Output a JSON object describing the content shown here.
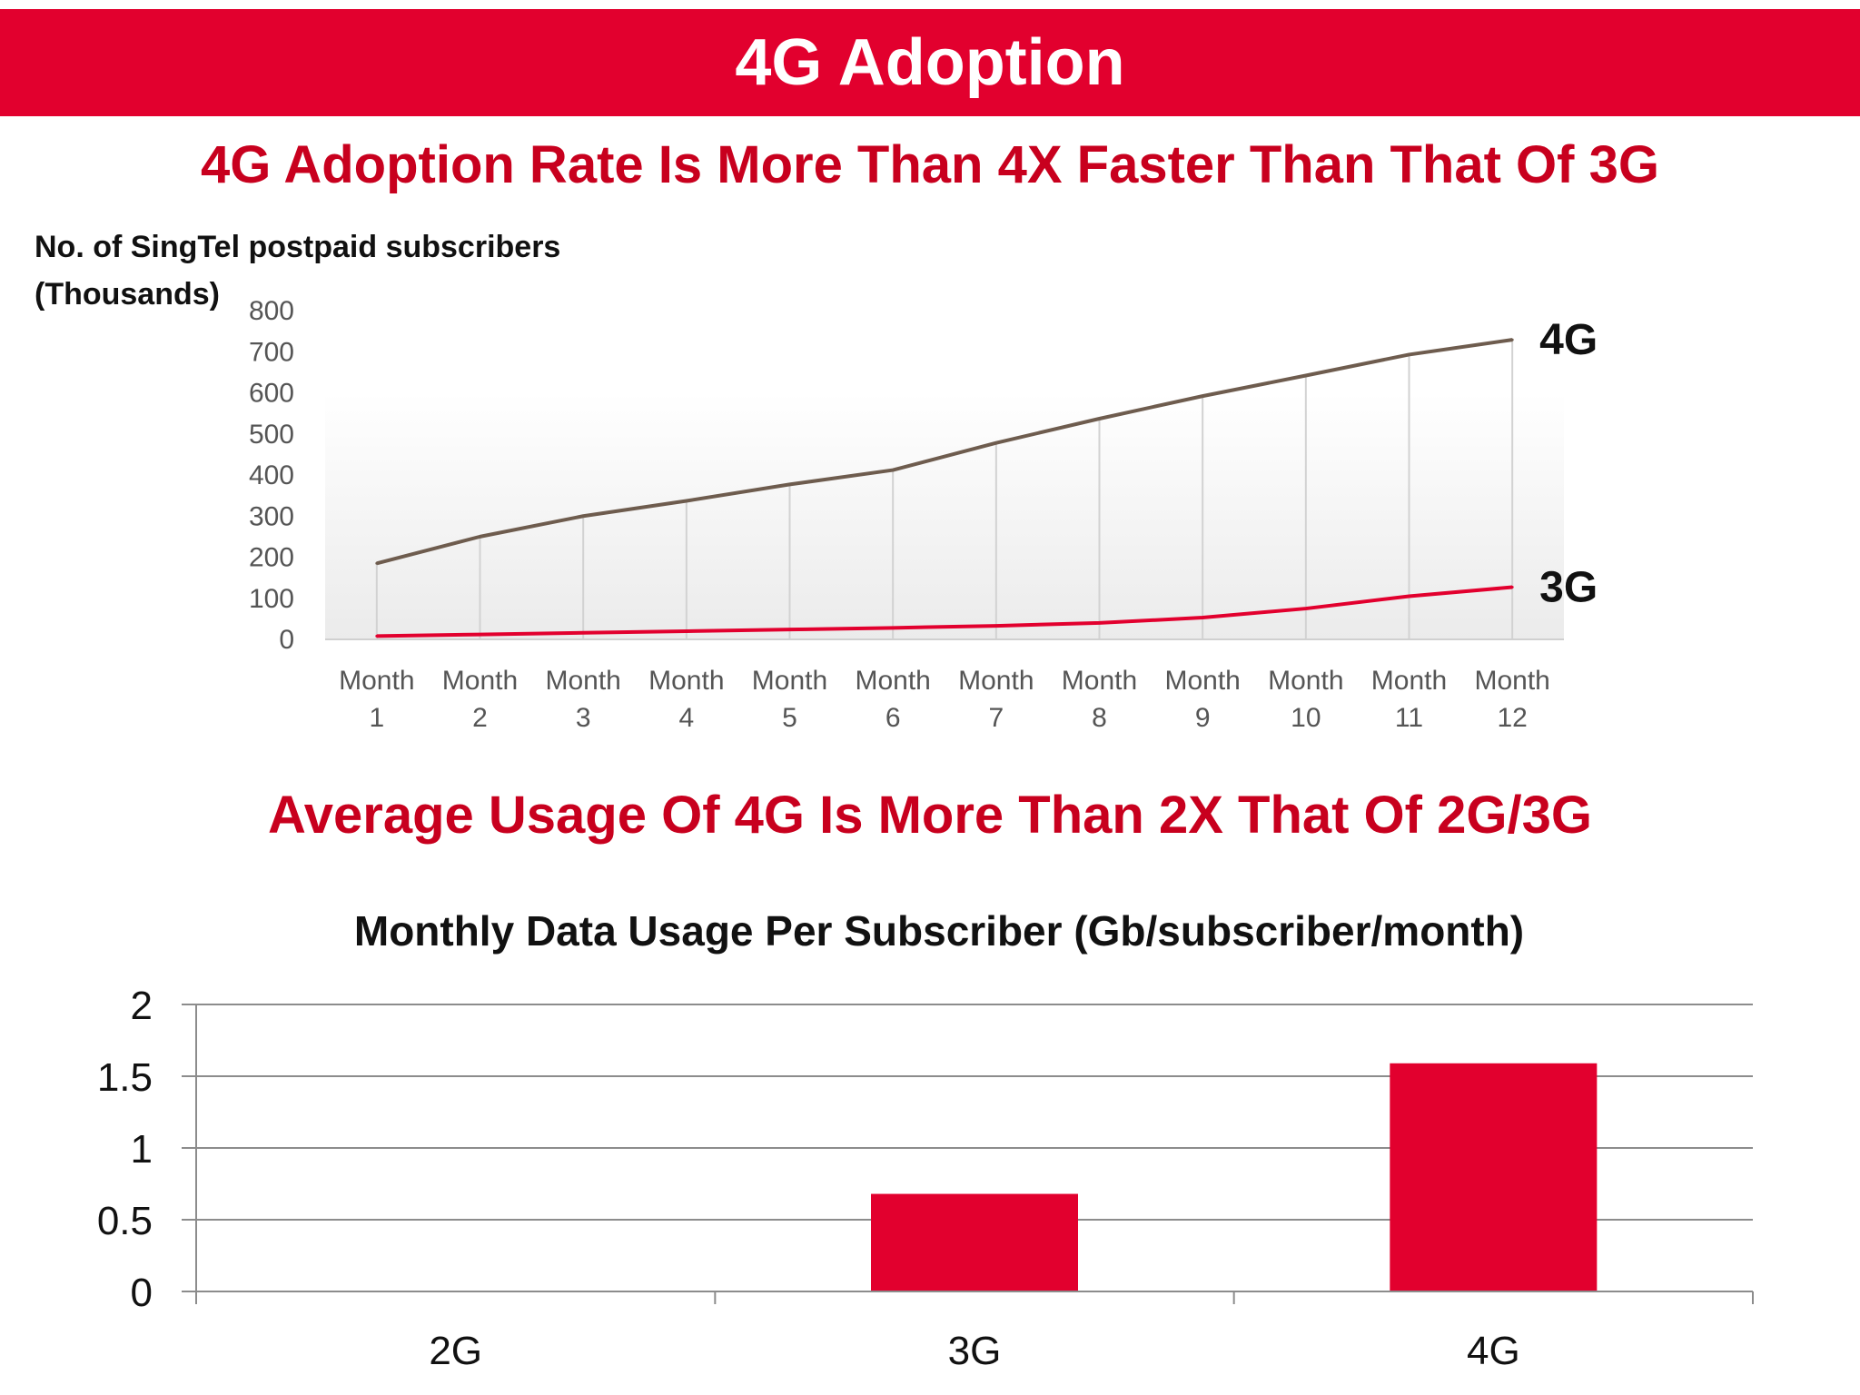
{
  "header": {
    "title": "4G Adoption"
  },
  "sections": {
    "adoption_heading": "4G Adoption Rate Is More Than 4X Faster Than That Of 3G",
    "usage_heading": "Average Usage Of 4G Is More Than 2X That Of 2G/3G"
  },
  "colors": {
    "brand_red": "#e2002e",
    "heading_red": "#c8001e",
    "line_4g": "#6e5c4e",
    "line_3g": "#e2002e"
  },
  "chart_data": [
    {
      "type": "line",
      "title": "",
      "ylabel_line1": "No. of SingTel postpaid subscribers",
      "ylabel_line2": "(Thousands)",
      "categories": [
        [
          "Month",
          "1"
        ],
        [
          "Month",
          "2"
        ],
        [
          "Month",
          "3"
        ],
        [
          "Month",
          "4"
        ],
        [
          "Month",
          "5"
        ],
        [
          "Month",
          "6"
        ],
        [
          "Month",
          "7"
        ],
        [
          "Month",
          "8"
        ],
        [
          "Month",
          "9"
        ],
        [
          "Month",
          "10"
        ],
        [
          "Month",
          "11"
        ],
        [
          "Month",
          "12"
        ]
      ],
      "series": [
        {
          "name": "4G",
          "values": [
            185,
            250,
            300,
            337,
            377,
            412,
            478,
            537,
            592,
            642,
            693,
            729
          ]
        },
        {
          "name": "3G",
          "values": [
            8,
            12,
            16,
            20,
            24,
            28,
            33,
            40,
            53,
            75,
            105,
            127
          ]
        }
      ],
      "ylim": [
        0,
        800
      ],
      "yticks": [
        "0",
        "100",
        "200",
        "300",
        "400",
        "500",
        "600",
        "700",
        "800"
      ],
      "legend": "line-end labels"
    },
    {
      "type": "bar",
      "title": "Monthly Data Usage Per Subscriber (Gb/subscriber/month)",
      "categories": [
        "2G",
        "3G",
        "4G"
      ],
      "values": [
        0,
        0.68,
        1.59
      ],
      "ylim": [
        0,
        2
      ],
      "yticks": [
        "0",
        "0.5",
        "1",
        "1.5",
        "2"
      ],
      "grid": true
    }
  ]
}
